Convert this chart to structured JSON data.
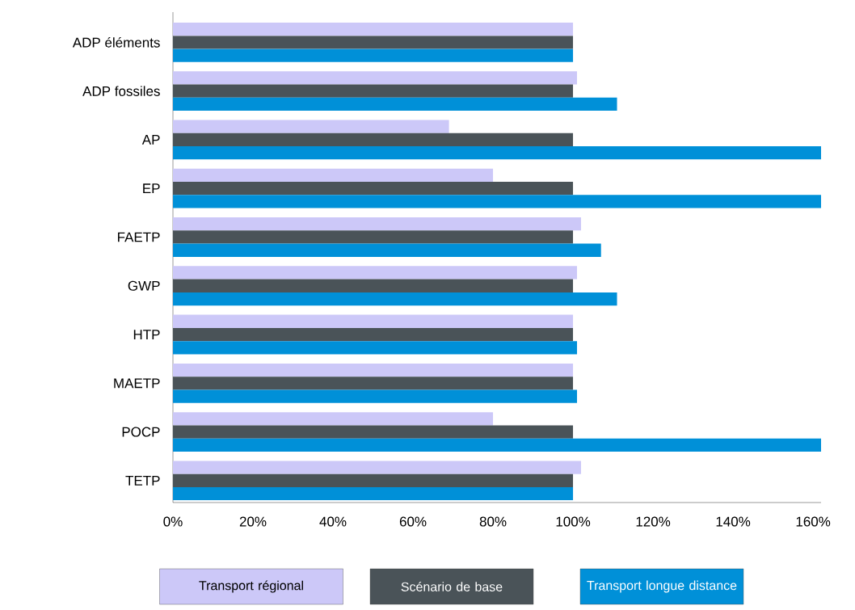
{
  "chart_data": {
    "type": "bar",
    "orientation": "horizontal",
    "categories": [
      "ADP éléments",
      "ADP fossiles",
      "AP",
      "EP",
      "FAETP",
      "GWP",
      "HTP",
      "MAETP",
      "POCP",
      "TETP"
    ],
    "series": [
      {
        "name": "Transport régional",
        "color": "#ccc8f8",
        "values": [
          100,
          101,
          69,
          80,
          102,
          101,
          100,
          100,
          80,
          102
        ]
      },
      {
        "name": "Scénario de base",
        "color": "#4a5358",
        "values": [
          100,
          100,
          100,
          100,
          100,
          100,
          100,
          100,
          100,
          100
        ]
      },
      {
        "name": "Transport longue distance",
        "color": "#0090d8",
        "values": [
          100,
          111,
          162,
          162,
          107,
          111,
          101,
          101,
          162,
          100
        ]
      }
    ],
    "xlim": [
      0,
      162
    ],
    "xticks": [
      {
        "value": 0,
        "label": "0%"
      },
      {
        "value": 20,
        "label": "20%"
      },
      {
        "value": 40,
        "label": "40%"
      },
      {
        "value": 60,
        "label": "60%"
      },
      {
        "value": 80,
        "label": "80%"
      },
      {
        "value": 100,
        "label": "100%"
      },
      {
        "value": 120,
        "label": "120%"
      },
      {
        "value": 140,
        "label": "140%"
      },
      {
        "value": 160,
        "label": "160%"
      }
    ],
    "grid": false,
    "legend": "bottom"
  }
}
